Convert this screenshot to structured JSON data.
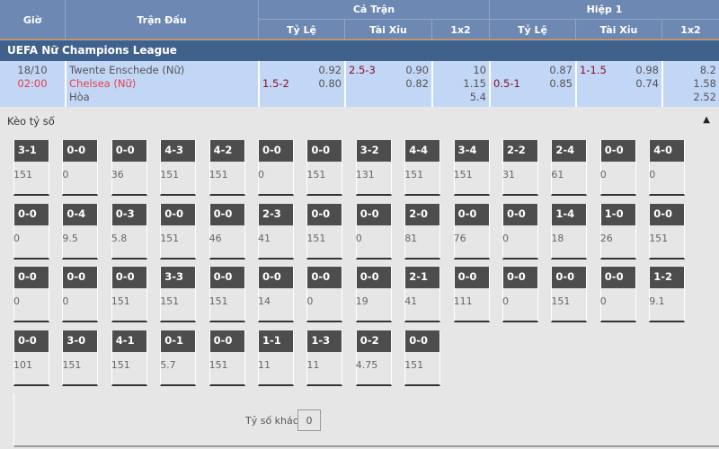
{
  "header": {
    "gio": "Giờ",
    "tran_dau": "Trận Đấu",
    "ca_tran": "Cả Trận",
    "hiep1": "Hiệp 1",
    "ty_le": "Tỷ Lệ",
    "tai_xiu": "Tài Xỉu",
    "x12": "1x2"
  },
  "league": "UEFA Nữ Champions League",
  "match": {
    "date": "18/10",
    "time": "02:00",
    "home": "Twente Enschede (Nữ)",
    "away": "Chelsea (Nữ)",
    "draw": "Hòa",
    "ft_hdp_line": "1.5-2",
    "ft_hdp_home": "0.92",
    "ft_hdp_away": "0.80",
    "ft_ou_line": "2.5-3",
    "ft_ou_over": "0.90",
    "ft_ou_under": "0.82",
    "ft_1": "10",
    "ft_2": "1.15",
    "ft_x": "5.4",
    "h1_hdp_line": "0.5-1",
    "h1_hdp_home": "0.87",
    "h1_hdp_away": "0.85",
    "h1_ou_line": "1-1.5",
    "h1_ou_over": "0.98",
    "h1_ou_under": "0.74",
    "h1_1": "8.2",
    "h1_2": "1.58",
    "h1_x": "2.52"
  },
  "correct_score": {
    "title": "Kèo tỷ số",
    "collapse_icon": "triangle-up-icon",
    "rows": [
      [
        [
          "3-1",
          "151"
        ],
        [
          "0-0",
          "0"
        ],
        [
          "0-0",
          "36"
        ],
        [
          "4-3",
          "151"
        ],
        [
          "4-2",
          "151"
        ],
        [
          "0-0",
          "0"
        ],
        [
          "0-0",
          "151"
        ],
        [
          "3-2",
          "131"
        ],
        [
          "4-4",
          "151"
        ],
        [
          "3-4",
          "151"
        ],
        [
          "2-2",
          "31"
        ],
        [
          "2-4",
          "61"
        ],
        [
          "0-0",
          "0"
        ],
        [
          "4-0",
          "0"
        ]
      ],
      [
        [
          "0-0",
          "0"
        ],
        [
          "0-4",
          "9.5"
        ],
        [
          "0-3",
          "5.8"
        ],
        [
          "0-0",
          "151"
        ],
        [
          "0-0",
          "46"
        ],
        [
          "2-3",
          "41"
        ],
        [
          "0-0",
          "151"
        ],
        [
          "0-0",
          "0"
        ],
        [
          "2-0",
          "81"
        ],
        [
          "0-0",
          "76"
        ],
        [
          "0-0",
          "0"
        ],
        [
          "1-4",
          "18"
        ],
        [
          "1-0",
          "26"
        ],
        [
          "0-0",
          "151"
        ]
      ],
      [
        [
          "0-0",
          "0"
        ],
        [
          "0-0",
          "0"
        ],
        [
          "0-0",
          "151"
        ],
        [
          "3-3",
          "151"
        ],
        [
          "0-0",
          "151"
        ],
        [
          "0-0",
          "14"
        ],
        [
          "0-0",
          "0"
        ],
        [
          "0-0",
          "19"
        ],
        [
          "2-1",
          "41"
        ],
        [
          "0-0",
          "111"
        ],
        [
          "0-0",
          "0"
        ],
        [
          "0-0",
          "151"
        ],
        [
          "0-0",
          "0"
        ],
        [
          "1-2",
          "9.1"
        ]
      ],
      [
        [
          "0-0",
          "101"
        ],
        [
          "3-0",
          "151"
        ],
        [
          "4-1",
          "151"
        ],
        [
          "0-1",
          "5.7"
        ],
        [
          "0-0",
          "151"
        ],
        [
          "1-1",
          "11"
        ],
        [
          "1-3",
          "11"
        ],
        [
          "0-2",
          "4.75"
        ],
        [
          "0-0",
          "151"
        ]
      ]
    ],
    "other_label": "Tỷ số khác",
    "other_value": "0"
  }
}
